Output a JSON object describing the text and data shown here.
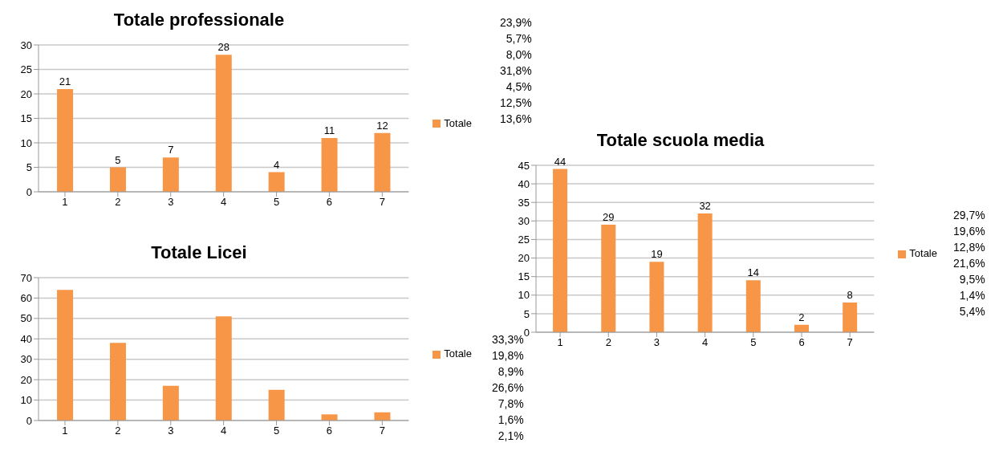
{
  "chart_data": [
    {
      "type": "bar",
      "title": "Totale professionale",
      "categories": [
        "1",
        "2",
        "3",
        "4",
        "5",
        "6",
        "7"
      ],
      "series": [
        {
          "name": "Totale",
          "color": "#f79646",
          "values": [
            21,
            5,
            7,
            28,
            4,
            11,
            12
          ]
        }
      ],
      "ylim": [
        0,
        30
      ],
      "yticks": [
        0,
        5,
        10,
        15,
        20,
        25,
        30
      ],
      "grid": "y",
      "legend": "right",
      "data_labels": true,
      "annotations": [
        "23,9%",
        "5,7%",
        "8,0%",
        "31,8%",
        "4,5%",
        "12,5%",
        "13,6%"
      ]
    },
    {
      "type": "bar",
      "title": "Totale Licei",
      "categories": [
        "1",
        "2",
        "3",
        "4",
        "5",
        "6",
        "7"
      ],
      "series": [
        {
          "name": "Totale",
          "color": "#f79646",
          "values": [
            64,
            38,
            17,
            51,
            15,
            3,
            4
          ]
        }
      ],
      "ylim": [
        0,
        70
      ],
      "yticks": [
        0,
        10,
        20,
        30,
        40,
        50,
        60,
        70
      ],
      "grid": "y",
      "legend": "right",
      "annotations": [
        "33,3%",
        "19,8%",
        "8,9%",
        "26,6%",
        "7,8%",
        "1,6%",
        "2,1%"
      ]
    },
    {
      "type": "bar",
      "title": "Totale scuola media",
      "categories": [
        "1",
        "2",
        "3",
        "4",
        "5",
        "6",
        "7"
      ],
      "series": [
        {
          "name": "Totale",
          "color": "#f79646",
          "values": [
            44,
            29,
            19,
            32,
            14,
            2,
            8
          ]
        }
      ],
      "ylim": [
        0,
        45
      ],
      "yticks": [
        0,
        5,
        10,
        15,
        20,
        25,
        30,
        35,
        40,
        45
      ],
      "grid": "y",
      "legend": "right",
      "data_labels": true,
      "annotations": [
        "29,7%",
        "19,6%",
        "12,8%",
        "21,6%",
        "9,5%",
        "1,4%",
        "5,4%"
      ]
    }
  ]
}
